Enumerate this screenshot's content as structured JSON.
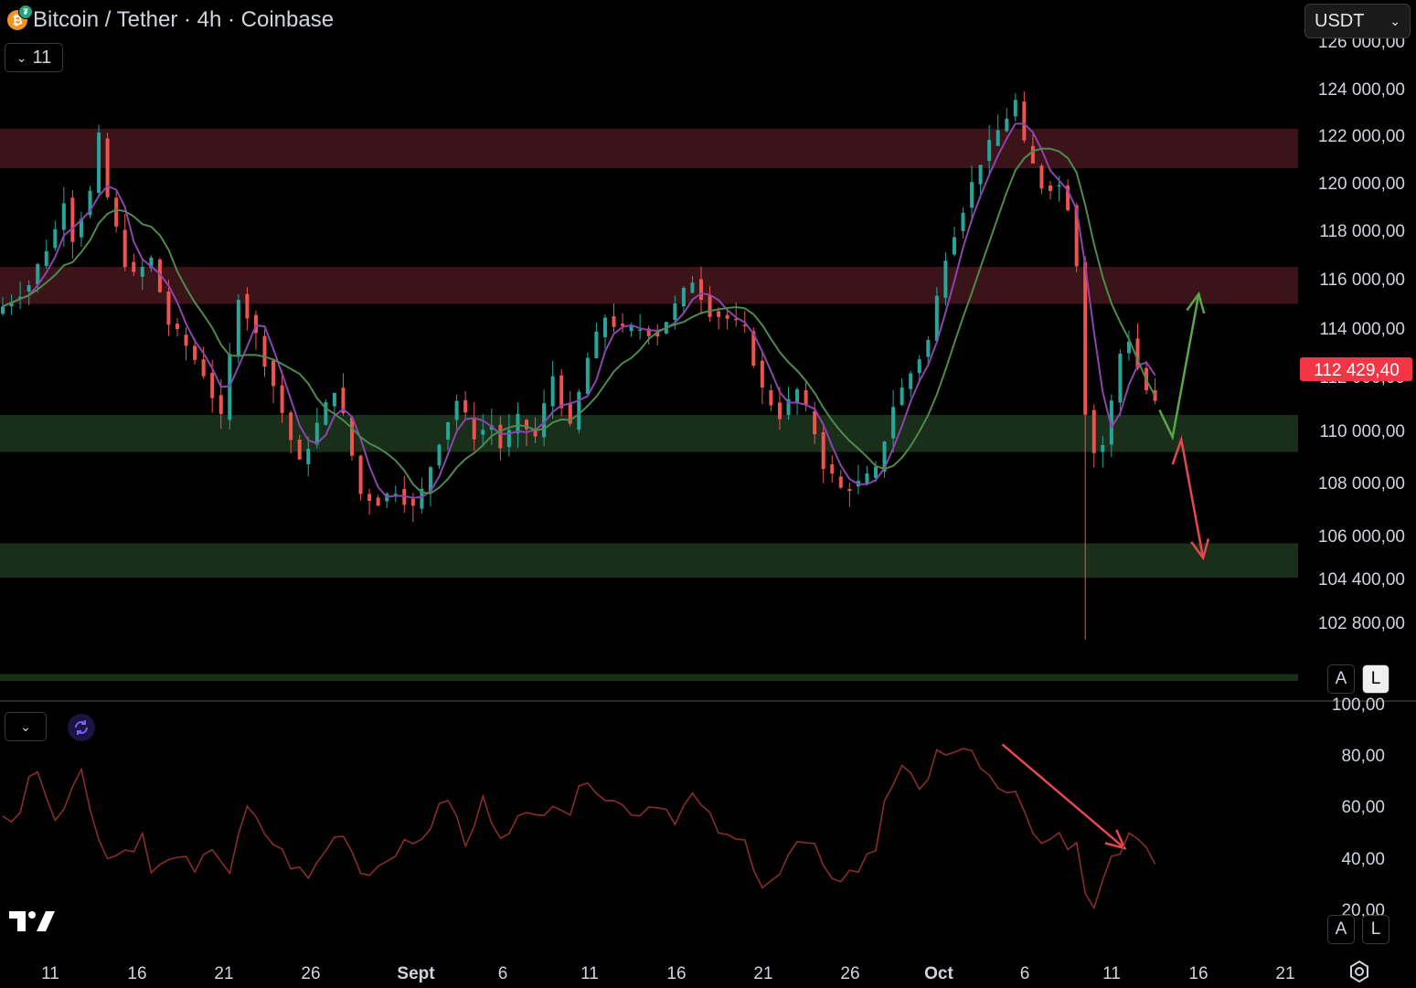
{
  "header": {
    "title": "Bitcoin / Tether · 4h · Coinbase",
    "indicator_count": "11",
    "currency": "USDT"
  },
  "colors": {
    "background": "#000000",
    "bull": "#26a69a",
    "bear": "#ef5350",
    "resistance_zone": "#3a1418",
    "support_zone": "#1a2f1a",
    "ma_fast": "#8e44ad",
    "ma_slow": "#4d8a4d",
    "rsi_line": "#8a2c2c",
    "price_badge": "#f23645"
  },
  "icons": {
    "coin": "bitcoin-tether-icon",
    "collapse": "chevron-down-icon",
    "indicator": "refresh-icon",
    "logo": "tradingview-logo",
    "settings": "gear-icon"
  },
  "price_axis": {
    "labels": [
      "126 000,00",
      "124 000,00",
      "122 000,00",
      "120 000,00",
      "118 000,00",
      "116 000,00",
      "114 000,00",
      "112 000,00",
      "110 000,00",
      "108 000,00",
      "106 000,00",
      "104 400,00",
      "102 800,00"
    ],
    "current_price": "112 429,40"
  },
  "rsi_axis": {
    "labels": [
      "100,00",
      "80,00",
      "60,00",
      "40,00",
      "20,00"
    ]
  },
  "time_axis": {
    "labels": [
      "11",
      "16",
      "21",
      "26",
      "Sept",
      "6",
      "11",
      "16",
      "21",
      "26",
      "Oct",
      "6",
      "11",
      "16",
      "21"
    ]
  },
  "scale_buttons": {
    "auto": "A",
    "log": "L"
  },
  "chart_data": {
    "type": "candlestick",
    "symbol": "BTC/USDT",
    "interval": "4h",
    "exchange": "Coinbase",
    "ylim": [
      101500,
      127000
    ],
    "grid": false,
    "close_path": [
      [
        0,
        116400
      ],
      [
        3,
        117300
      ],
      [
        6,
        119500
      ],
      [
        7,
        120800
      ],
      [
        8,
        119200
      ],
      [
        10,
        121000
      ],
      [
        11,
        123200
      ],
      [
        12,
        120800
      ],
      [
        14,
        118200
      ],
      [
        15,
        117600
      ],
      [
        17,
        118300
      ],
      [
        19,
        115700
      ],
      [
        21,
        114800
      ],
      [
        23,
        113700
      ],
      [
        24,
        112800
      ],
      [
        25,
        111800
      ],
      [
        27,
        116900
      ],
      [
        29,
        115200
      ],
      [
        31,
        113200
      ],
      [
        33,
        111000
      ],
      [
        34,
        110000
      ],
      [
        36,
        111600
      ],
      [
        38,
        113100
      ],
      [
        39,
        111900
      ],
      [
        41,
        108800
      ],
      [
        43,
        108500
      ],
      [
        45,
        109000
      ],
      [
        47,
        108200
      ],
      [
        48,
        108900
      ],
      [
        50,
        111000
      ],
      [
        52,
        112600
      ],
      [
        54,
        111200
      ],
      [
        56,
        111600
      ],
      [
        57,
        110700
      ],
      [
        59,
        111800
      ],
      [
        61,
        111100
      ],
      [
        63,
        113600
      ],
      [
        65,
        111400
      ],
      [
        67,
        114300
      ],
      [
        69,
        116000
      ],
      [
        71,
        115400
      ],
      [
        73,
        115500
      ],
      [
        75,
        115300
      ],
      [
        77,
        116400
      ],
      [
        79,
        117500
      ],
      [
        81,
        116200
      ],
      [
        83,
        115900
      ],
      [
        85,
        115400
      ],
      [
        87,
        113000
      ],
      [
        89,
        112000
      ],
      [
        91,
        113000
      ],
      [
        93,
        111300
      ],
      [
        94,
        110000
      ],
      [
        96,
        109000
      ],
      [
        98,
        109200
      ],
      [
        100,
        109700
      ],
      [
        102,
        112400
      ],
      [
        104,
        113700
      ],
      [
        106,
        115000
      ],
      [
        108,
        118500
      ],
      [
        110,
        120400
      ],
      [
        112,
        122300
      ],
      [
        114,
        123500
      ],
      [
        116,
        124700
      ],
      [
        117,
        122900
      ],
      [
        119,
        121300
      ],
      [
        121,
        121300
      ],
      [
        122,
        120500
      ],
      [
        123,
        118200
      ],
      [
        124,
        112200
      ],
      [
        125,
        110500
      ],
      [
        126,
        110800
      ],
      [
        127,
        112500
      ],
      [
        128,
        114500
      ],
      [
        129,
        115100
      ],
      [
        130,
        113900
      ],
      [
        131,
        113000
      ],
      [
        132,
        112429
      ]
    ],
    "moving_averages": [
      {
        "color": "#8e44ad"
      },
      {
        "color": "#4d8a4d"
      }
    ],
    "zones": [
      {
        "kind": "resistance",
        "from": 122000,
        "to": 123600
      },
      {
        "kind": "resistance",
        "from": 116500,
        "to": 118000
      },
      {
        "kind": "support",
        "from": 110500,
        "to": 112000
      },
      {
        "kind": "support",
        "from": 105400,
        "to": 106800
      },
      {
        "kind": "support",
        "from": 100100,
        "to": 101500
      }
    ],
    "wick_low": 102900,
    "annotations": [
      {
        "kind": "arrow",
        "color": "#5aa64a",
        "direction": "up",
        "path": [
          [
            132.5,
            112200
          ],
          [
            134,
            111100
          ],
          [
            137,
            116900
          ]
        ]
      },
      {
        "kind": "arrow",
        "color": "#e5484d",
        "direction": "down",
        "path": [
          [
            134,
            110000
          ],
          [
            135,
            111000
          ],
          [
            137.5,
            106200
          ]
        ]
      }
    ],
    "rsi": {
      "ylim": [
        20,
        100
      ],
      "path": [
        [
          0,
          55
        ],
        [
          2,
          58
        ],
        [
          3,
          70
        ],
        [
          4,
          76
        ],
        [
          5,
          64
        ],
        [
          6,
          56
        ],
        [
          8,
          68
        ],
        [
          9,
          73
        ],
        [
          10,
          60
        ],
        [
          12,
          40
        ],
        [
          14,
          43
        ],
        [
          16,
          48
        ],
        [
          17,
          35
        ],
        [
          19,
          38
        ],
        [
          20,
          43
        ],
        [
          22,
          33
        ],
        [
          24,
          45
        ],
        [
          26,
          35
        ],
        [
          28,
          59
        ],
        [
          29,
          54
        ],
        [
          31,
          46
        ],
        [
          33,
          38
        ],
        [
          35,
          32
        ],
        [
          37,
          44
        ],
        [
          39,
          51
        ],
        [
          41,
          35
        ],
        [
          43,
          37
        ],
        [
          45,
          44
        ],
        [
          47,
          45
        ],
        [
          49,
          53
        ],
        [
          51,
          64
        ],
        [
          52,
          55
        ],
        [
          53,
          44
        ],
        [
          55,
          62
        ],
        [
          57,
          50
        ],
        [
          59,
          55
        ],
        [
          61,
          56
        ],
        [
          63,
          63
        ],
        [
          65,
          58
        ],
        [
          67,
          72
        ],
        [
          69,
          64
        ],
        [
          71,
          60
        ],
        [
          73,
          58
        ],
        [
          75,
          62
        ],
        [
          77,
          56
        ],
        [
          79,
          64
        ],
        [
          81,
          55
        ],
        [
          83,
          47
        ],
        [
          85,
          46
        ],
        [
          87,
          31
        ],
        [
          89,
          34
        ],
        [
          91,
          46
        ],
        [
          93,
          43
        ],
        [
          94,
          35
        ],
        [
          96,
          33
        ],
        [
          98,
          36
        ],
        [
          100,
          44
        ],
        [
          101,
          63
        ],
        [
          103,
          77
        ],
        [
          105,
          64
        ],
        [
          107,
          83
        ],
        [
          109,
          79
        ],
        [
          111,
          80
        ],
        [
          113,
          73
        ],
        [
          114,
          66
        ],
        [
          116,
          64
        ],
        [
          117,
          58
        ],
        [
          119,
          44
        ],
        [
          121,
          48
        ],
        [
          122,
          42
        ],
        [
          123,
          45
        ],
        [
          124,
          26
        ],
        [
          125,
          21
        ],
        [
          126,
          30
        ],
        [
          127,
          38
        ],
        [
          129,
          50
        ],
        [
          130,
          48
        ],
        [
          131,
          45
        ],
        [
          132,
          40
        ]
      ],
      "annotation": {
        "kind": "arrow",
        "color": "#e5484d",
        "path": [
          [
            114.5,
            84
          ],
          [
            128.5,
            44
          ]
        ]
      }
    }
  }
}
